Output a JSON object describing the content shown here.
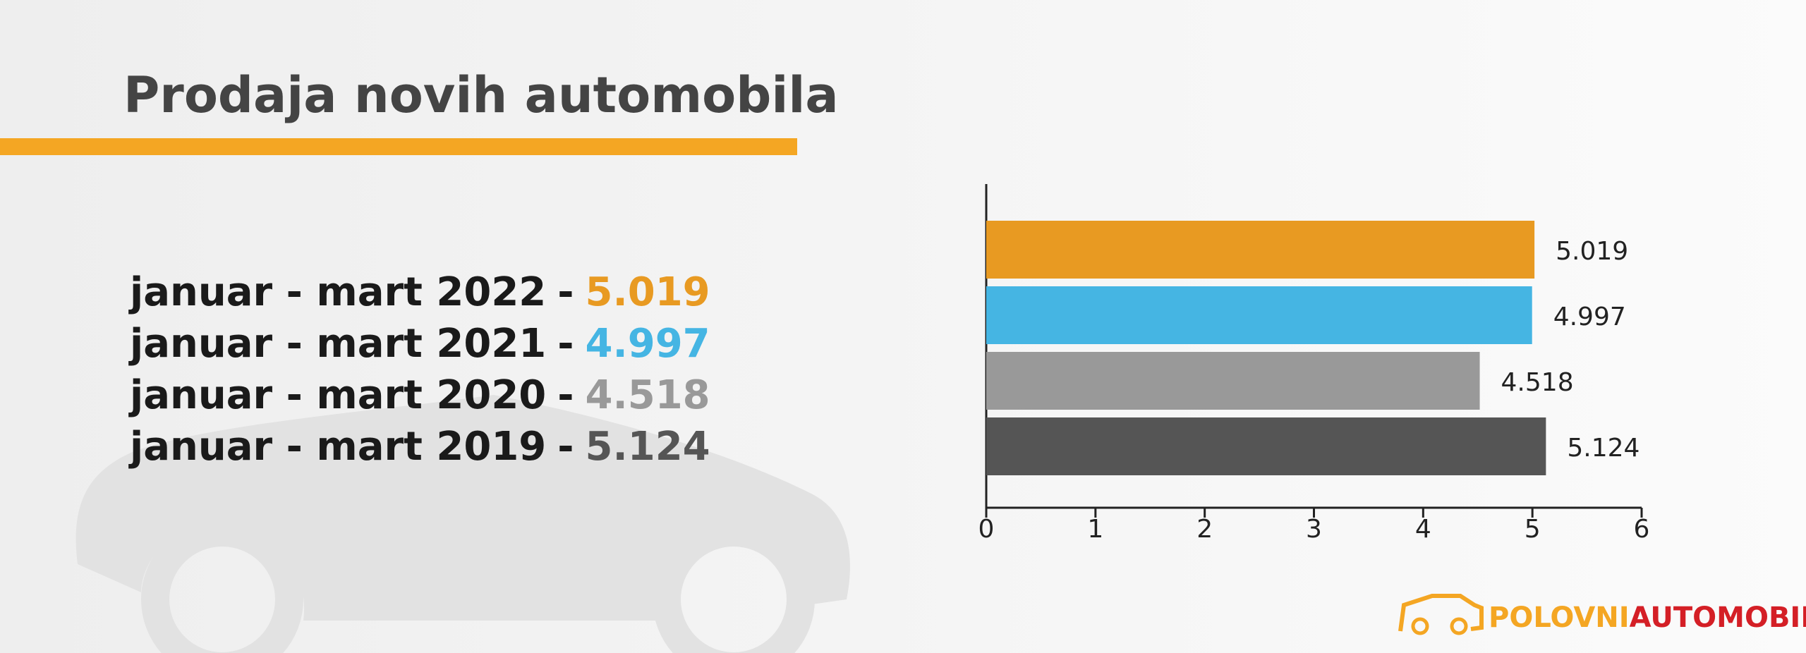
{
  "chart_data": {
    "type": "bar",
    "orientation": "horizontal",
    "title": "Prodaja novih automobila",
    "categories": [
      "januar - mart 2022",
      "januar - mart 2021",
      "januar - mart 2020",
      "januar - mart 2019"
    ],
    "separator": "-",
    "values": [
      5.019,
      4.997,
      4.518,
      5.124
    ],
    "colors": [
      "#e89a22",
      "#45b5e3",
      "#999999",
      "#555555"
    ],
    "xlim": [
      0,
      6
    ],
    "xticks": [
      0,
      1,
      2,
      3,
      4,
      5,
      6
    ]
  },
  "logo": {
    "first": "POLOVNI",
    "second": "AUTOMOBILI"
  }
}
